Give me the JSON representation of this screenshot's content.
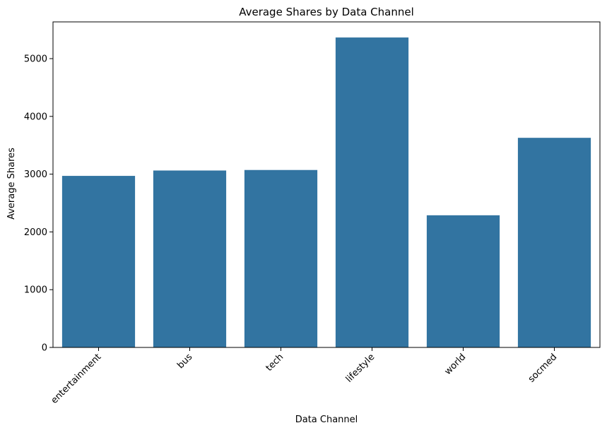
{
  "chart_data": {
    "type": "bar",
    "title": "Average Shares by Data Channel",
    "xlabel": "Data Channel",
    "ylabel": "Average Shares",
    "categories": [
      "entertainment",
      "bus",
      "tech",
      "lifestyle",
      "world",
      "socmed"
    ],
    "values": [
      2970,
      3063,
      3072,
      5366,
      2288,
      3629
    ],
    "ylim": [
      0,
      5636
    ],
    "yticks": [
      0,
      1000,
      2000,
      3000,
      4000,
      5000
    ],
    "grid": false,
    "legend": "none",
    "bar_color": "#3274a1"
  }
}
